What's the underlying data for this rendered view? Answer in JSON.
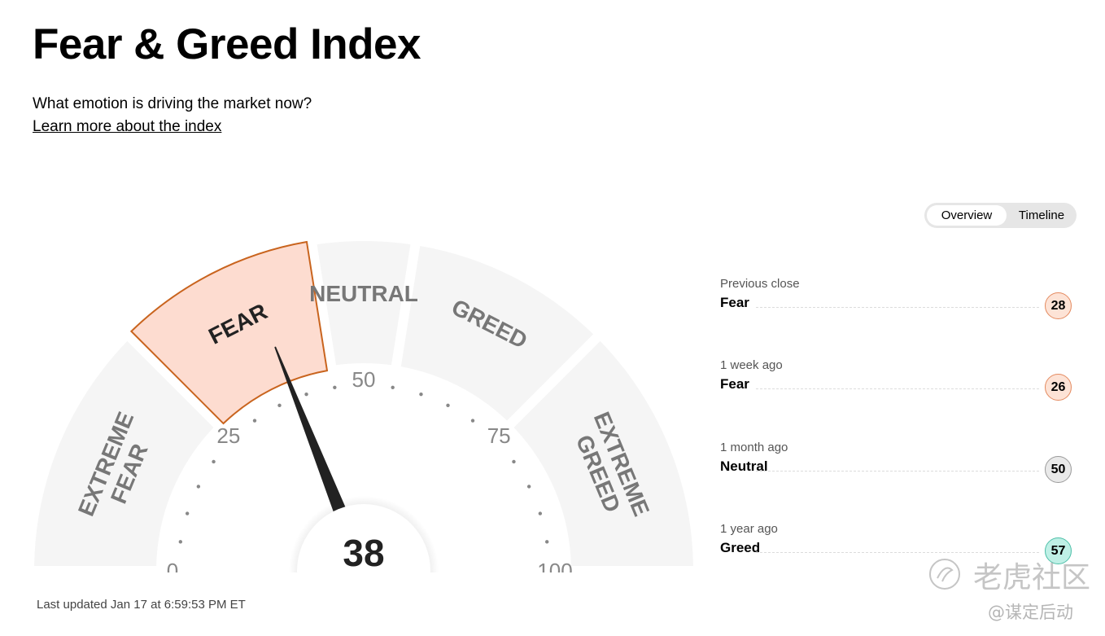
{
  "page": {
    "title": "Fear & Greed Index",
    "subtitle": "What emotion is driving the market now?",
    "learn_more": "Learn more about the index",
    "last_updated": "Last updated Jan 17 at 6:59:53 PM ET"
  },
  "view_toggle": {
    "overview": "Overview",
    "timeline": "Timeline",
    "selected": "Overview"
  },
  "gauge": {
    "value": 38,
    "value_text": "38",
    "active_segment": "FEAR",
    "segments": [
      {
        "label": [
          "EXTREME",
          "FEAR"
        ],
        "range": [
          0,
          25
        ]
      },
      {
        "label": [
          "FEAR"
        ],
        "range": [
          25,
          45
        ]
      },
      {
        "label": [
          "NEUTRAL"
        ],
        "range": [
          45,
          55
        ]
      },
      {
        "label": [
          "GREED"
        ],
        "range": [
          55,
          75
        ]
      },
      {
        "label": [
          "EXTREME",
          "GREED"
        ],
        "range": [
          75,
          100
        ]
      }
    ],
    "scale_labels": [
      "0",
      "25",
      "50",
      "75",
      "100"
    ],
    "colors": {
      "segment": "#f5f5f5",
      "active_fill": "#fddcd0",
      "active_stroke": "#c9641e",
      "needle": "#222222",
      "text": "#777777"
    }
  },
  "history": [
    {
      "period": "Previous close",
      "rating": "Fear",
      "value": "28",
      "badge_bg": "#fde3d6",
      "badge_border": "#e48a5f"
    },
    {
      "period": "1 week ago",
      "rating": "Fear",
      "value": "26",
      "badge_bg": "#fde3d6",
      "badge_border": "#e48a5f"
    },
    {
      "period": "1 month ago",
      "rating": "Neutral",
      "value": "50",
      "badge_bg": "#e9e9e9",
      "badge_border": "#9a9a9a"
    },
    {
      "period": "1 year ago",
      "rating": "Greed",
      "value": "57",
      "badge_bg": "#bff0e6",
      "badge_border": "#4dbfa8"
    }
  ],
  "watermark": {
    "brand": "老虎社区",
    "handle": "@谋定后动"
  }
}
